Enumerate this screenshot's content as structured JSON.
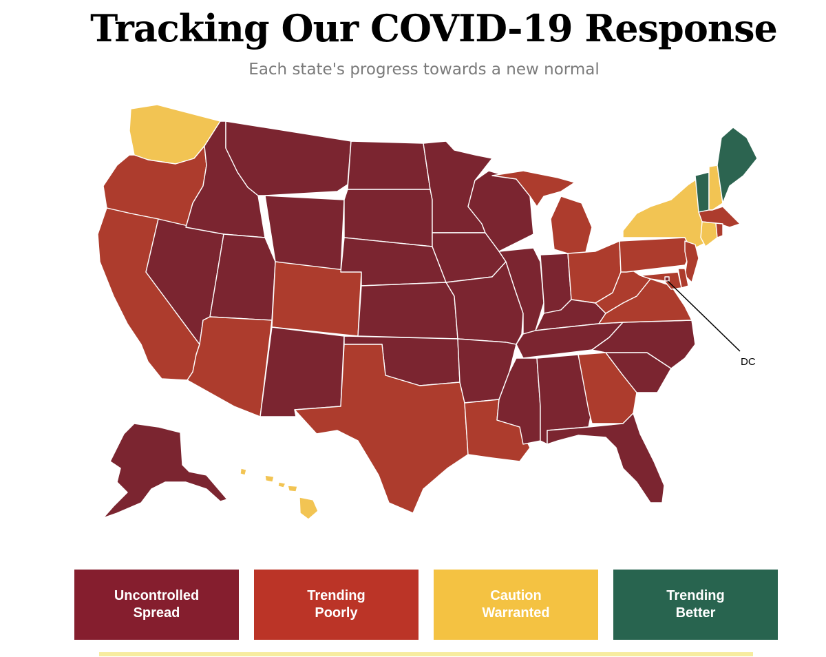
{
  "header": {
    "title": "Tracking Our COVID-19 Response",
    "subtitle": "Each state's progress towards a new normal"
  },
  "colors": {
    "uncontrolled_spread": "#7b2530",
    "trending_poorly": "#ad3c2d",
    "caution_warranted": "#f2c453",
    "trending_better": "#2c6450",
    "legend_uncontrolled": "#851e2e",
    "legend_poorly": "#bb3427",
    "legend_caution": "#f4c242",
    "legend_better": "#28644f"
  },
  "map": {
    "dc_label": "DC",
    "states": {
      "WA": "caution",
      "OR": "poorly",
      "CA": "poorly",
      "ID": "uncontrolled",
      "NV": "uncontrolled",
      "MT": "uncontrolled",
      "WY": "uncontrolled",
      "UT": "uncontrolled",
      "AZ": "poorly",
      "CO": "poorly",
      "NM": "uncontrolled",
      "ND": "uncontrolled",
      "SD": "uncontrolled",
      "NE": "uncontrolled",
      "KS": "uncontrolled",
      "OK": "uncontrolled",
      "TX": "poorly",
      "MN": "uncontrolled",
      "IA": "uncontrolled",
      "MO": "uncontrolled",
      "AR": "uncontrolled",
      "LA": "poorly",
      "WI": "uncontrolled",
      "IL": "uncontrolled",
      "MI": "poorly",
      "IN": "uncontrolled",
      "OH": "poorly",
      "KY": "uncontrolled",
      "TN": "uncontrolled",
      "MS": "uncontrolled",
      "AL": "uncontrolled",
      "GA": "poorly",
      "FL": "uncontrolled",
      "SC": "uncontrolled",
      "NC": "uncontrolled",
      "VA": "poorly",
      "WV": "poorly",
      "PA": "poorly",
      "NY": "caution",
      "VT": "better",
      "NH": "caution",
      "ME": "better",
      "MA": "poorly",
      "RI": "poorly",
      "CT": "caution",
      "NJ": "poorly",
      "DE": "poorly",
      "MD": "poorly",
      "DC": "uncontrolled",
      "AK": "uncontrolled",
      "HI": "caution"
    }
  },
  "legend": [
    {
      "key": "uncontrolled",
      "line1": "Uncontrolled",
      "line2": "Spread"
    },
    {
      "key": "poorly",
      "line1": "Trending",
      "line2": "Poorly"
    },
    {
      "key": "caution",
      "line1": "Caution",
      "line2": "Warranted"
    },
    {
      "key": "better",
      "line1": "Trending",
      "line2": "Better"
    }
  ]
}
